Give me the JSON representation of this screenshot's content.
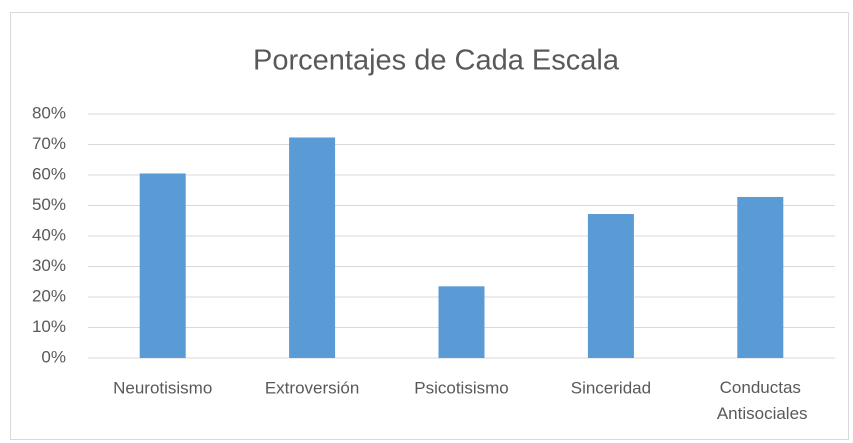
{
  "chart_data": {
    "type": "bar",
    "title": "Porcentajes de Cada Escala",
    "categories": [
      "Neurotisismo",
      "Extroversión",
      "Psicotisismo",
      "Sinceridad",
      "Conductas Antisociales"
    ],
    "values": [
      60.5,
      72.3,
      23.5,
      47.2,
      52.8
    ],
    "color": "#5b9bd5",
    "ylim": [
      0,
      80
    ],
    "yticks": [
      {
        "value": 0,
        "label": "0%"
      },
      {
        "value": 10,
        "label": "10%"
      },
      {
        "value": 20,
        "label": "20%"
      },
      {
        "value": 30,
        "label": "30%"
      },
      {
        "value": 40,
        "label": "40%"
      },
      {
        "value": 50,
        "label": "50%"
      },
      {
        "value": 60,
        "label": "60%"
      },
      {
        "value": 70,
        "label": "70%"
      },
      {
        "value": 80,
        "label": "80%"
      }
    ],
    "grid": true
  }
}
